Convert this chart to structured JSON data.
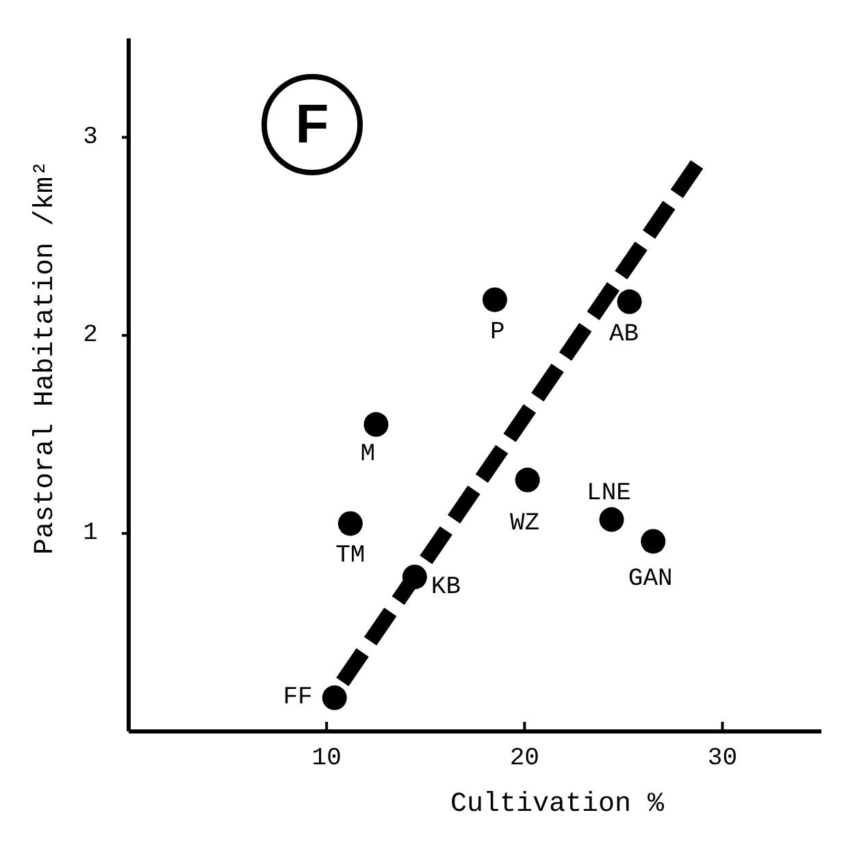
{
  "chart_data": {
    "type": "scatter",
    "xlabel": "Cultivation %",
    "ylabel": "Pastoral Habitation /km²",
    "xlim": [
      0,
      35
    ],
    "ylim": [
      0,
      3.5
    ],
    "xticks": [
      10,
      20,
      30
    ],
    "yticks": [
      1,
      2,
      3
    ],
    "grid": false,
    "marker": "circle",
    "annotations": [
      "F",
      {
        "text": "FF",
        "x": 10.4,
        "y": 0.17
      },
      {
        "text": "TM",
        "x": 11.2,
        "y": 1.05
      },
      {
        "text": "M",
        "x": 12.5,
        "y": 1.55
      },
      {
        "text": "KB",
        "x": 14.45,
        "y": 0.78
      },
      {
        "text": "P",
        "x": 18.5,
        "y": 2.18
      },
      {
        "text": "WZ",
        "x": 20.15,
        "y": 1.27
      },
      {
        "text": "AB",
        "x": 25.3,
        "y": 2.17
      },
      {
        "text": "LNE",
        "x": 24.4,
        "y": 1.07
      },
      {
        "text": "GAN",
        "x": 26.5,
        "y": 0.96
      }
    ],
    "series": [
      {
        "color": "#000000",
        "x": [
          10.4,
          11.2,
          12.5,
          14.45,
          18.5,
          20.15,
          25.3,
          24.4,
          26.5
        ],
        "values": [
          0.17,
          1.05,
          1.55,
          0.78,
          2.18,
          1.27,
          2.17,
          1.07,
          0.96
        ]
      },
      {
        "type": "line",
        "color": "#000000",
        "line_style": "dashed",
        "marker": "none",
        "x": [
          10.8,
          29.1
        ],
        "values": [
          0.25,
          2.92
        ]
      }
    ]
  }
}
